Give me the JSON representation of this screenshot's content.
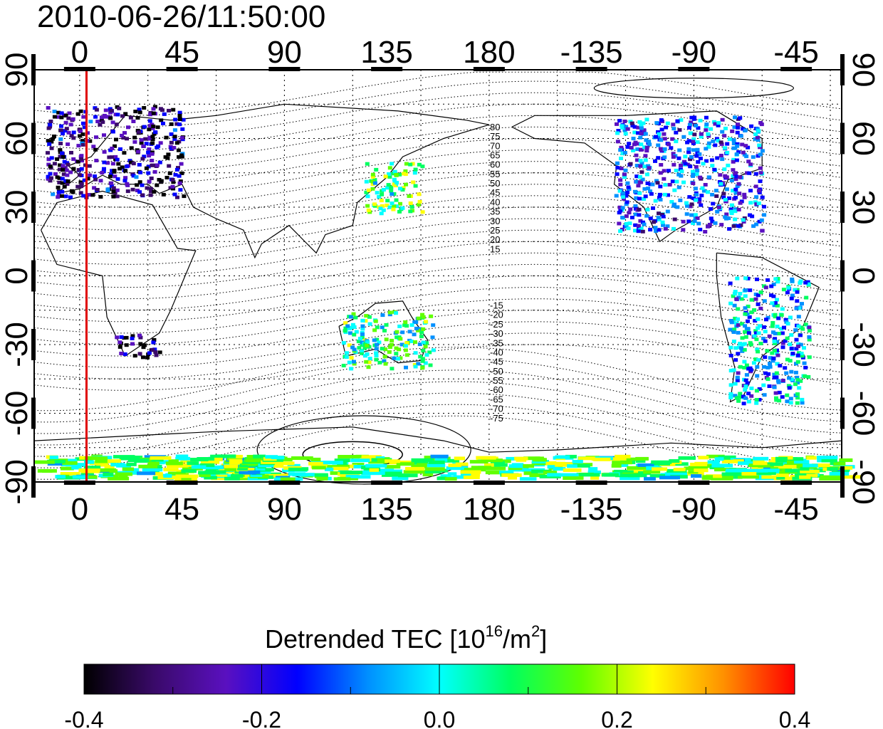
{
  "timestamp": "2010-06-26/11:50:00",
  "x_axis": {
    "top_tick_labels": [
      "0",
      "45",
      "90",
      "135",
      "180",
      "-135",
      "-90",
      "-45"
    ],
    "bottom_tick_labels": [
      "0",
      "45",
      "90",
      "135",
      "180",
      "-135",
      "-90",
      "-45"
    ],
    "longitudes_east": [
      0,
      45,
      90,
      135,
      180,
      225,
      270,
      315
    ],
    "lon_range_east": [
      -20,
      335
    ]
  },
  "y_axis": {
    "left_tick_labels": [
      "90",
      "60",
      "30",
      "0",
      "-30",
      "-60",
      "-90"
    ],
    "right_tick_labels": [
      "90",
      "60",
      "30",
      "0",
      "-30",
      "-60",
      "-90"
    ],
    "latitudes": [
      90,
      60,
      30,
      0,
      -30,
      -60,
      -90
    ]
  },
  "contour_labels": [
    "80",
    "75",
    "70",
    "65",
    "60",
    "55",
    "50",
    "45",
    "40",
    "35",
    "30",
    "25",
    "20",
    "15",
    "-15",
    "-20",
    "-25",
    "-30",
    "-35",
    "-40",
    "-45",
    "-50",
    "-55",
    "-60",
    "-65",
    "-70",
    "-75"
  ],
  "marker_line": {
    "longitude": 3,
    "color": "#e00000"
  },
  "colorbar": {
    "title_main": "Detrended TEC  [10",
    "title_exp": "16",
    "title_unit": "/m",
    "title_exp2": "2",
    "title_close": "]",
    "tick_labels": [
      "-0.4",
      "-0.2",
      "0.0",
      "0.2",
      "0.4"
    ],
    "range": [
      -0.4,
      0.4
    ],
    "colors": [
      "#000000",
      "#3a0a6a",
      "#5a10c0",
      "#0000ff",
      "#0090ff",
      "#00ffff",
      "#00ff60",
      "#60ff00",
      "#ffff00",
      "#ff9000",
      "#ff0000"
    ]
  },
  "data_patches": [
    {
      "region": "Europe",
      "lon": [
        -15,
        45
      ],
      "lat": [
        35,
        75
      ],
      "level": -0.25
    },
    {
      "region": "Japan",
      "lon": [
        125,
        150
      ],
      "lat": [
        28,
        50
      ],
      "level": 0.1
    },
    {
      "region": "North America",
      "lon": [
        235,
        300
      ],
      "lat": [
        20,
        70
      ],
      "level": -0.12
    },
    {
      "region": "South America",
      "lon": [
        285,
        320
      ],
      "lat": [
        -55,
        0
      ],
      "level": -0.05
    },
    {
      "region": "Australia",
      "lon": [
        115,
        155
      ],
      "lat": [
        -40,
        -15
      ],
      "level": 0.05
    },
    {
      "region": "Antarctica",
      "lon": [
        -20,
        335
      ],
      "lat": [
        -88,
        -78
      ],
      "level": 0.1
    },
    {
      "region": "Southern Africa",
      "lon": [
        15,
        35
      ],
      "lat": [
        -35,
        -25
      ],
      "level": -0.3
    }
  ]
}
